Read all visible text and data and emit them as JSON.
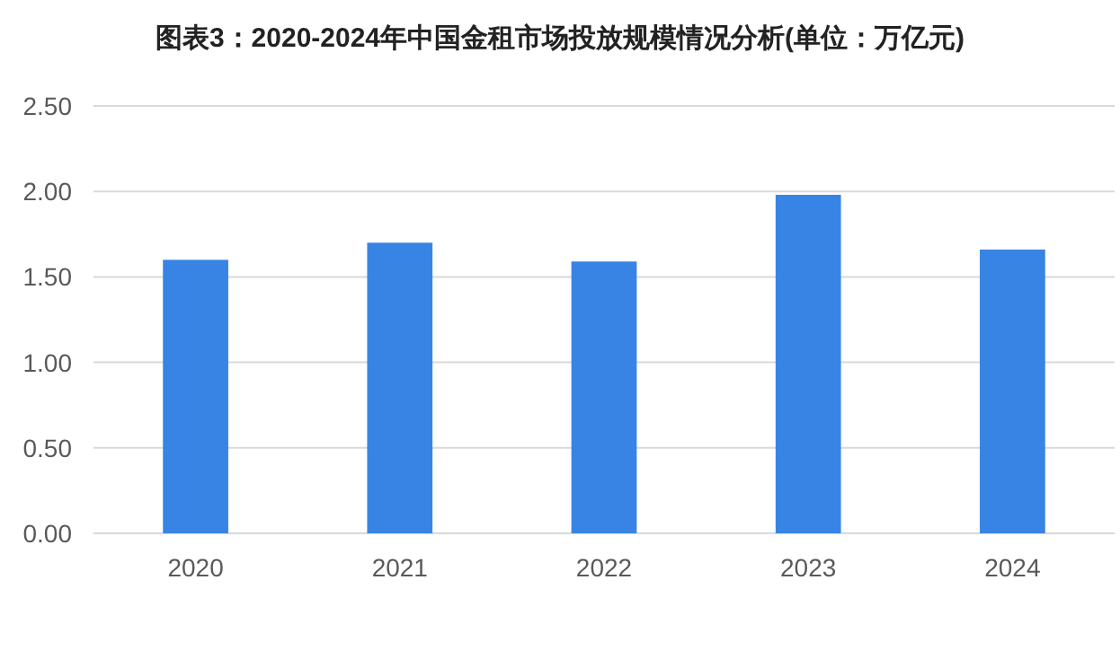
{
  "chart_data": {
    "type": "bar",
    "title": "图表3：2020-2024年中国金租市场投放规模情况分析(单位：万亿元)",
    "categories": [
      "2020",
      "2021",
      "2022",
      "2023",
      "2024"
    ],
    "values": [
      1.6,
      1.7,
      1.59,
      1.98,
      1.66
    ],
    "color": "#3784e4",
    "ylim": [
      0,
      2.5
    ],
    "yticks": [
      {
        "value": 0,
        "label": "0.00"
      },
      {
        "value": 0.5,
        "label": "0.50"
      },
      {
        "value": 1,
        "label": "1.00"
      },
      {
        "value": 1.5,
        "label": "1.50"
      },
      {
        "value": 2,
        "label": "2.00"
      },
      {
        "value": 2.5,
        "label": "2.50"
      }
    ],
    "grid": "y"
  }
}
